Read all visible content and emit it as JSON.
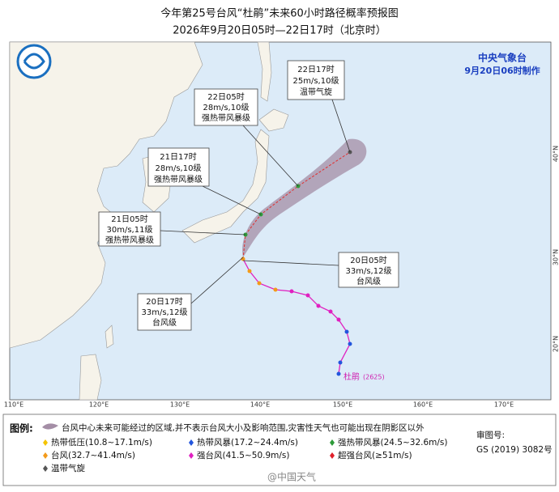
{
  "header": {
    "title": "今年第25号台风“杜鹃”未来60小时路径概率预报图",
    "subtitle": "2026年9月20日05时—22日17时（北京时）"
  },
  "agency": {
    "name": "中央气象台",
    "issued": "9月20日06时制作"
  },
  "forecast_labels": [
    {
      "time": "22日17时",
      "wind": "25m/s,10级",
      "grade": "温带气旋"
    },
    {
      "time": "22日05时",
      "wind": "28m/s,10级",
      "grade": "强热带风暴级"
    },
    {
      "time": "21日17时",
      "wind": "28m/s,10级",
      "grade": "强热带风暴级"
    },
    {
      "time": "21日05时",
      "wind": "30m/s,11级",
      "grade": "强热带风暴级"
    },
    {
      "time": "20日05时",
      "wind": "33m/s,12级",
      "grade": "台风级"
    },
    {
      "time": "20日17时",
      "wind": "33m/s,12级",
      "grade": "台风级"
    }
  ],
  "storm_label": {
    "name": "杜鹃",
    "code": "(2625)"
  },
  "longitudes": [
    "110°E",
    "120°E",
    "130°E",
    "140°E",
    "150°E",
    "160°E",
    "170°E"
  ],
  "latitudes": [
    "40°N",
    "30°N",
    "20°N"
  ],
  "legend": {
    "title": "图例:",
    "cone_text": "台风中心未来可能经过的区域,并不表示台风大小及影响范围,灾害性天气也可能出现在阴影区以外",
    "items": [
      {
        "label": "热带低压(10.8~17.1m/s)",
        "color": "#f5c400"
      },
      {
        "label": "热带风暴(17.2~24.4m/s)",
        "color": "#2255dd"
      },
      {
        "label": "强热带风暴(24.5~32.6m/s)",
        "color": "#2e9b3a"
      },
      {
        "label": "台风(32.7~41.4m/s)",
        "color": "#f39a1a"
      },
      {
        "label": "强台风(41.5~50.9m/s)",
        "color": "#e020c0"
      },
      {
        "label": "超强台风(≥51m/s)",
        "color": "#e0202a"
      },
      {
        "label": "温带气旋",
        "color": "#555555"
      }
    ]
  },
  "approval": {
    "label": "审图号:",
    "number": "GS (2019) 3082号"
  },
  "watermark": "@中国天气"
}
